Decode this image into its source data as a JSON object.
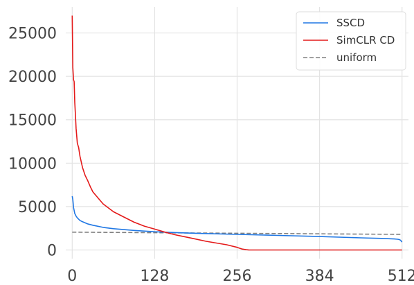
{
  "chart_data": {
    "type": "line",
    "title": "",
    "xlabel": "",
    "ylabel": "",
    "xlim": [
      -10,
      522
    ],
    "ylim": [
      -1000,
      28000
    ],
    "xticks": [
      0,
      128,
      256,
      384,
      512
    ],
    "xtick_labels": [
      "0",
      "128",
      "256",
      "384",
      "512"
    ],
    "yticks": [
      0,
      5000,
      10000,
      15000,
      20000,
      25000
    ],
    "ytick_labels": [
      "0",
      "5000",
      "10000",
      "15000",
      "20000",
      "25000"
    ],
    "grid": true,
    "legend_position": "top-right",
    "series": [
      {
        "name": "SSCD",
        "color": "#1f77e4",
        "style": "solid",
        "x": [
          0,
          1,
          2,
          4,
          6,
          8,
          12,
          16,
          24,
          32,
          48,
          64,
          96,
          128,
          160,
          192,
          256,
          320,
          384,
          448,
          480,
          500,
          505,
          508,
          510,
          512
        ],
        "y": [
          6200,
          5800,
          4900,
          4200,
          3900,
          3700,
          3400,
          3250,
          3000,
          2850,
          2600,
          2450,
          2250,
          2100,
          2000,
          1920,
          1800,
          1680,
          1550,
          1400,
          1330,
          1270,
          1240,
          1200,
          1100,
          900
        ]
      },
      {
        "name": "SimCLR CD",
        "color": "#e41a1a",
        "style": "solid",
        "x": [
          0,
          1,
          2,
          3,
          4,
          5,
          6,
          8,
          10,
          12,
          16,
          20,
          24,
          28,
          32,
          40,
          48,
          64,
          80,
          96,
          112,
          128,
          144,
          160,
          176,
          192,
          208,
          224,
          240,
          256,
          264,
          270,
          274,
          278,
          284,
          300,
          384,
          512
        ],
        "y": [
          27000,
          21000,
          19600,
          19400,
          17000,
          15500,
          14000,
          12300,
          11800,
          10800,
          9500,
          8600,
          8000,
          7300,
          6700,
          6000,
          5300,
          4400,
          3800,
          3200,
          2750,
          2400,
          2050,
          1750,
          1500,
          1250,
          1000,
          800,
          600,
          300,
          100,
          30,
          5,
          0,
          0,
          0,
          0,
          0
        ]
      },
      {
        "name": "uniform",
        "color": "#808080",
        "style": "dashed",
        "x": [
          0,
          512
        ],
        "y": [
          2048,
          1800
        ]
      }
    ]
  }
}
